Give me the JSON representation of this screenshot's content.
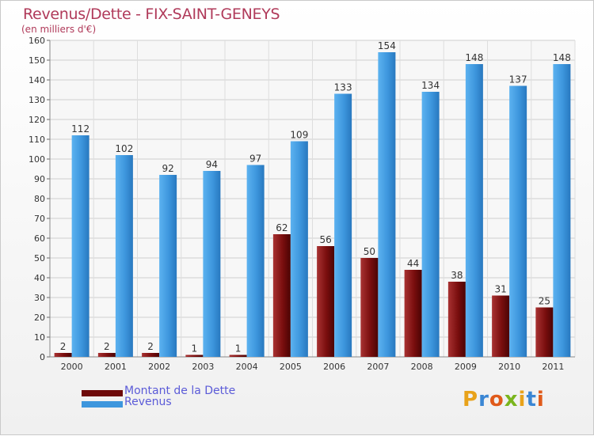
{
  "title": "Revenus/Dette - FIX-SAINT-GENEYS",
  "subtitle": "(en milliers d'€)",
  "logo_text": "Proxiti",
  "chart_data": {
    "type": "bar",
    "categories": [
      "2000",
      "2001",
      "2002",
      "2003",
      "2004",
      "2005",
      "2006",
      "2007",
      "2008",
      "2009",
      "2010",
      "2011"
    ],
    "series": [
      {
        "name": "Montant de la Dette",
        "values": [
          2,
          2,
          2,
          1,
          1,
          62,
          56,
          50,
          44,
          38,
          31,
          25
        ],
        "color": "#7a0e0e"
      },
      {
        "name": "Revenus",
        "values": [
          112,
          102,
          92,
          94,
          97,
          109,
          133,
          154,
          134,
          148,
          137,
          148
        ],
        "color": "#3d96dd"
      }
    ],
    "ylim": [
      0,
      160
    ],
    "yticks": [
      0,
      10,
      20,
      30,
      40,
      50,
      60,
      70,
      80,
      90,
      100,
      110,
      120,
      130,
      140,
      150,
      160
    ],
    "grid": true,
    "legend_position": "bottom-left"
  }
}
